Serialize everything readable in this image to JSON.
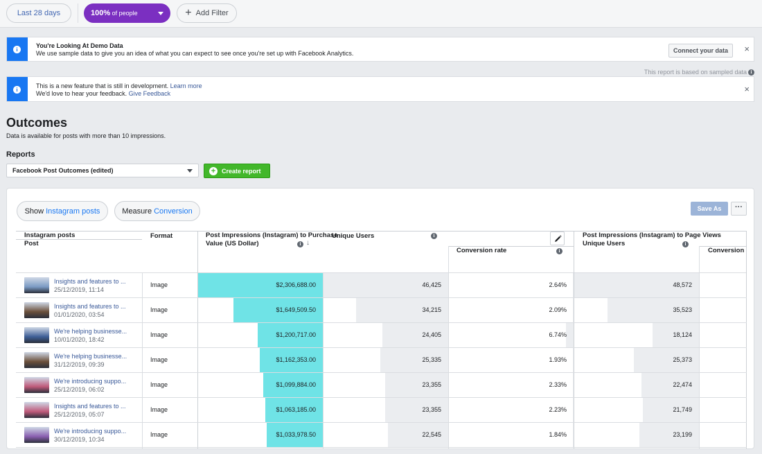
{
  "toolbar": {
    "date_range": "Last 28 days",
    "people_bold": "100%",
    "people_rest": " of people",
    "add_filter": "Add Filter"
  },
  "demo_banner": {
    "title": "You're Looking At Demo Data",
    "body": "We use sample data to give you an idea of what you can expect to see once you're set up with Facebook Analytics.",
    "button": "Connect your data",
    "close": "×"
  },
  "sampled_note": "This report is based on sampled data",
  "dev_banner": {
    "line1": "This is a new feature that is still in development.",
    "learn_more": "Learn more",
    "line2": "We'd love to hear your feedback.",
    "give_feedback": "Give Feedback",
    "close": "×"
  },
  "page": {
    "title": "Outcomes",
    "subtitle": "Data is available for posts with more than 10 impressions.",
    "reports_label": "Reports",
    "report_selected": "Facebook Post Outcomes (edited)",
    "create_report": "Create report"
  },
  "card": {
    "show_label": "Show",
    "show_value": "Instagram posts",
    "measure_label": "Measure",
    "measure_value": "Conversion",
    "save_as": "Save As",
    "more": "···"
  },
  "table": {
    "headers": {
      "group": "Instagram posts",
      "post": "Post",
      "format": "Format",
      "purchase_metric_line1": "Post Impressions (Instagram) to Purchase",
      "purchase_metric_line2": "Value (US Dollar)",
      "unique_users": "Unique Users",
      "conversion_rate": "Conversion rate",
      "pageviews_metric": "Post Impressions (Instagram) to Page Views",
      "unique_users_2": "Unique Users",
      "conversion_2": "Conversion"
    },
    "rows": [
      {
        "title": "Insights and features to ...",
        "date": "25/12/2019, 11:14",
        "format": "Image",
        "purchase": "$2,306,688.00",
        "purchase_frac": 1.0,
        "users": "46,425",
        "users_frac": 1.0,
        "rate": "2.64%",
        "rate_frac": 0.008,
        "users2": "48,572",
        "users2_frac": 1.0,
        "thumb": "#7b9bc4"
      },
      {
        "title": "Insights and features to ...",
        "date": "01/01/2020, 03:54",
        "format": "Image",
        "purchase": "$1,649,509.50",
        "purchase_frac": 0.715,
        "users": "34,215",
        "users_frac": 0.737,
        "rate": "2.09%",
        "rate_frac": 0.006,
        "users2": "35,523",
        "users2_frac": 0.731,
        "thumb": "#6b4f3a"
      },
      {
        "title": "We're helping businesse...",
        "date": "10/01/2020, 18:42",
        "format": "Image",
        "purchase": "$1,200,717.00",
        "purchase_frac": 0.52,
        "users": "24,405",
        "users_frac": 0.526,
        "rate": "6.74%",
        "rate_frac": 0.06,
        "users2": "18,124",
        "users2_frac": 0.373,
        "thumb": "#3e5f97"
      },
      {
        "title": "We're helping businesse...",
        "date": "31/12/2019, 09:39",
        "format": "Image",
        "purchase": "$1,162,353.00",
        "purchase_frac": 0.504,
        "users": "25,335",
        "users_frac": 0.546,
        "rate": "1.93%",
        "rate_frac": 0.005,
        "users2": "25,373",
        "users2_frac": 0.522,
        "thumb": "#6b4f3a"
      },
      {
        "title": "We're introducing suppo...",
        "date": "25/12/2019, 06:02",
        "format": "Image",
        "purchase": "$1,099,884.00",
        "purchase_frac": 0.477,
        "users": "23,355",
        "users_frac": 0.503,
        "rate": "2.33%",
        "rate_frac": 0.006,
        "users2": "22,474",
        "users2_frac": 0.463,
        "thumb": "#c05a7a"
      },
      {
        "title": "Insights and features to ...",
        "date": "25/12/2019, 05:07",
        "format": "Image",
        "purchase": "$1,063,185.00",
        "purchase_frac": 0.461,
        "users": "23,355",
        "users_frac": 0.503,
        "rate": "2.23%",
        "rate_frac": 0.006,
        "users2": "21,749",
        "users2_frac": 0.448,
        "thumb": "#c05a7a"
      },
      {
        "title": "We're introducing suppo...",
        "date": "30/12/2019, 10:34",
        "format": "Image",
        "purchase": "$1,033,978.50",
        "purchase_frac": 0.448,
        "users": "22,545",
        "users_frac": 0.486,
        "rate": "1.84%",
        "rate_frac": 0.005,
        "users2": "23,199",
        "users2_frac": 0.478,
        "thumb": "#8a5fb0"
      }
    ]
  },
  "colors": {
    "purchase_bar": "#6fe3e6",
    "users_bar": "#ebedf0",
    "accent_purple": "#7b2fc1",
    "create_green": "#42b72a",
    "info_blue": "#1877f2"
  }
}
